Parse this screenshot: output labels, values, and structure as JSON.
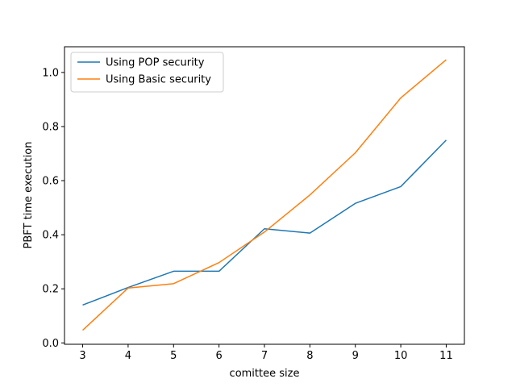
{
  "chart_data": {
    "type": "line",
    "title": "",
    "xlabel": "comittee size",
    "ylabel": "PBFT time execution",
    "x": [
      3,
      4,
      5,
      6,
      7,
      8,
      9,
      10,
      11
    ],
    "xticks": [
      "3",
      "4",
      "5",
      "6",
      "7",
      "8",
      "9",
      "10",
      "11"
    ],
    "yticks": [
      "0.0",
      "0.2",
      "0.4",
      "0.6",
      "0.8",
      "1.0"
    ],
    "xlim": [
      2.6,
      11.4
    ],
    "ylim": [
      -0.005,
      1.095
    ],
    "grid": false,
    "legend_position": "top-left",
    "series": [
      {
        "name": "Using POP security",
        "color": "#1f77b4",
        "values": [
          0.14,
          0.205,
          0.265,
          0.265,
          0.422,
          0.406,
          0.516,
          0.578,
          0.75
        ]
      },
      {
        "name": "Using Basic security",
        "color": "#ff7f0e",
        "values": [
          0.047,
          0.203,
          0.219,
          0.297,
          0.41,
          0.547,
          0.703,
          0.906,
          1.047
        ]
      }
    ]
  }
}
